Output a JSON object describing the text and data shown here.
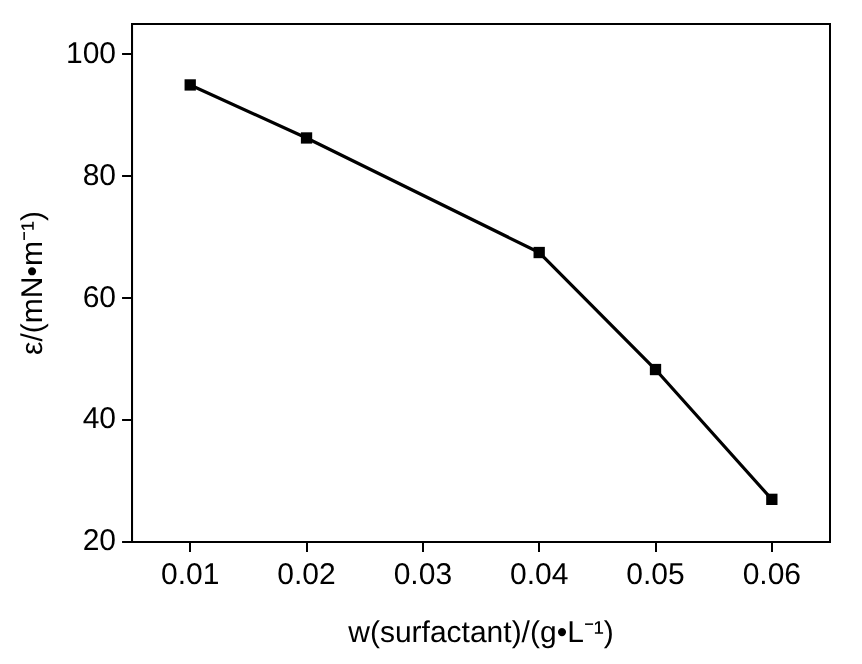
{
  "chart_data": {
    "type": "line",
    "xlabel": "w(surfactant)/(g•L⁻¹)",
    "ylabel": "ε/(mN•m⁻¹)",
    "x": [
      0.01,
      0.02,
      0.04,
      0.05,
      0.06
    ],
    "series": [
      {
        "color": "#000000",
        "values": [
          95,
          86.3,
          67.5,
          48.3,
          27
        ]
      }
    ],
    "xlim": [
      0.005,
      0.065
    ],
    "xticks": [
      0.01,
      0.02,
      0.03,
      0.04,
      0.05,
      0.06
    ],
    "ylim": [
      20,
      105
    ],
    "yticks": [
      20,
      40,
      60,
      80,
      100
    ],
    "grid": false,
    "legend": false,
    "marker": "square",
    "line_style": "solid"
  }
}
